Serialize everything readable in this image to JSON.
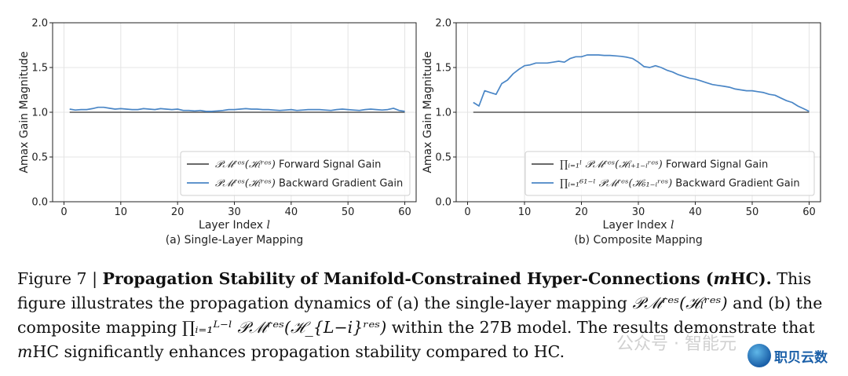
{
  "colors": {
    "forward": "#555555",
    "backward": "#4a86c6",
    "grid": "#e4e4e4"
  },
  "chart_data": [
    {
      "type": "line",
      "subtitle": "(a) Single-Layer Mapping",
      "xlabel": "Layer Index",
      "xlabel_var": "l",
      "ylabel": "Amax Gain Magnitude",
      "xlim": [
        -2,
        62
      ],
      "ylim": [
        0,
        2
      ],
      "xticks": [
        "0",
        "10",
        "20",
        "30",
        "40",
        "50",
        "60"
      ],
      "yticks": [
        "0.0",
        "0.5",
        "1.0",
        "1.5",
        "2.0"
      ],
      "legend_position": "lower-right",
      "series": [
        {
          "name": "Forward Signal Gain",
          "legend_math": "𝒫ℳʳᵉˢ(ℋₗʳᵉˢ)",
          "x": [
            1,
            60
          ],
          "y": [
            1.0,
            1.0
          ]
        },
        {
          "name": "Backward Gradient Gain",
          "legend_math": "𝒫ℳʳᵉˢ(ℋₗʳᵉˢ)",
          "x": [
            1,
            2,
            3,
            4,
            5,
            6,
            7,
            8,
            9,
            10,
            11,
            12,
            13,
            14,
            15,
            16,
            17,
            18,
            19,
            20,
            21,
            22,
            23,
            24,
            25,
            26,
            27,
            28,
            29,
            30,
            31,
            32,
            33,
            34,
            35,
            36,
            37,
            38,
            39,
            40,
            41,
            42,
            43,
            44,
            45,
            46,
            47,
            48,
            49,
            50,
            51,
            52,
            53,
            54,
            55,
            56,
            57,
            58,
            59,
            60
          ],
          "y": [
            1.035,
            1.025,
            1.03,
            1.03,
            1.04,
            1.055,
            1.055,
            1.045,
            1.035,
            1.04,
            1.035,
            1.03,
            1.03,
            1.04,
            1.035,
            1.03,
            1.04,
            1.035,
            1.03,
            1.035,
            1.02,
            1.02,
            1.015,
            1.02,
            1.01,
            1.01,
            1.015,
            1.02,
            1.03,
            1.03,
            1.035,
            1.04,
            1.035,
            1.035,
            1.03,
            1.03,
            1.025,
            1.02,
            1.025,
            1.03,
            1.02,
            1.025,
            1.03,
            1.03,
            1.03,
            1.025,
            1.02,
            1.03,
            1.035,
            1.03,
            1.025,
            1.02,
            1.03,
            1.035,
            1.03,
            1.025,
            1.03,
            1.045,
            1.02,
            1.01
          ]
        }
      ]
    },
    {
      "type": "line",
      "subtitle": "(b) Composite Mapping",
      "xlabel": "Layer Index",
      "xlabel_var": "l",
      "ylabel": "Amax Gain Magnitude",
      "xlim": [
        -2,
        62
      ],
      "ylim": [
        0,
        2
      ],
      "xticks": [
        "0",
        "10",
        "20",
        "30",
        "40",
        "50",
        "60"
      ],
      "yticks": [
        "0.0",
        "0.5",
        "1.0",
        "1.5",
        "2.0"
      ],
      "legend_position": "lower-right",
      "series": [
        {
          "name": "Forward Signal Gain",
          "legend_math": "∏ᵢ₌₁ˡ 𝒫ℳʳᵉˢ(ℋₗ₊₁₋ᵢʳᵉˢ)",
          "x": [
            1,
            60
          ],
          "y": [
            1.0,
            1.0
          ]
        },
        {
          "name": "Backward Gradient Gain",
          "legend_math": "∏ᵢ₌₁⁶¹⁻ˡ 𝒫ℳʳᵉˢ(ℋ₆₁₋ᵢʳᵉˢ)",
          "x": [
            1,
            2,
            3,
            4,
            5,
            6,
            7,
            8,
            9,
            10,
            11,
            12,
            13,
            14,
            15,
            16,
            17,
            18,
            19,
            20,
            21,
            22,
            23,
            24,
            25,
            26,
            27,
            28,
            29,
            30,
            31,
            32,
            33,
            34,
            35,
            36,
            37,
            38,
            39,
            40,
            41,
            42,
            43,
            44,
            45,
            46,
            47,
            48,
            49,
            50,
            51,
            52,
            53,
            54,
            55,
            56,
            57,
            58,
            59,
            60
          ],
          "y": [
            1.11,
            1.07,
            1.24,
            1.22,
            1.2,
            1.32,
            1.36,
            1.43,
            1.48,
            1.52,
            1.53,
            1.55,
            1.55,
            1.55,
            1.56,
            1.57,
            1.56,
            1.6,
            1.62,
            1.62,
            1.64,
            1.64,
            1.64,
            1.635,
            1.635,
            1.63,
            1.625,
            1.615,
            1.6,
            1.56,
            1.51,
            1.5,
            1.52,
            1.5,
            1.47,
            1.45,
            1.42,
            1.4,
            1.38,
            1.37,
            1.35,
            1.33,
            1.31,
            1.3,
            1.29,
            1.28,
            1.26,
            1.25,
            1.24,
            1.24,
            1.23,
            1.22,
            1.2,
            1.19,
            1.16,
            1.13,
            1.11,
            1.07,
            1.04,
            1.01
          ]
        }
      ]
    }
  ],
  "caption": {
    "fig": "Figure 7 | ",
    "title": "Propagation Stability of Manifold-Constrained Hyper-Connections (",
    "title_m": "m",
    "title_end": "HC).",
    "text1": " This figure illustrates the propagation dynamics of (a) the single-layer mapping ",
    "math1": "𝒫ℳʳᵉˢ(ℋₗʳᵉˢ)",
    "text2": " and (b) the composite mapping ",
    "math2": "∏ᵢ₌₁ᴸ⁻ˡ 𝒫ℳʳᵉˢ(ℋ_{L−i}ʳᵉˢ)",
    "text3": " within the 27B model. The results demonstrate that ",
    "m2": "m",
    "text4": "HC significantly enhances propagation stability compared to HC."
  },
  "watermark": "公众号 · 智能元",
  "brand": "职贝云数",
  "brand_icon": "wave-globe-icon"
}
